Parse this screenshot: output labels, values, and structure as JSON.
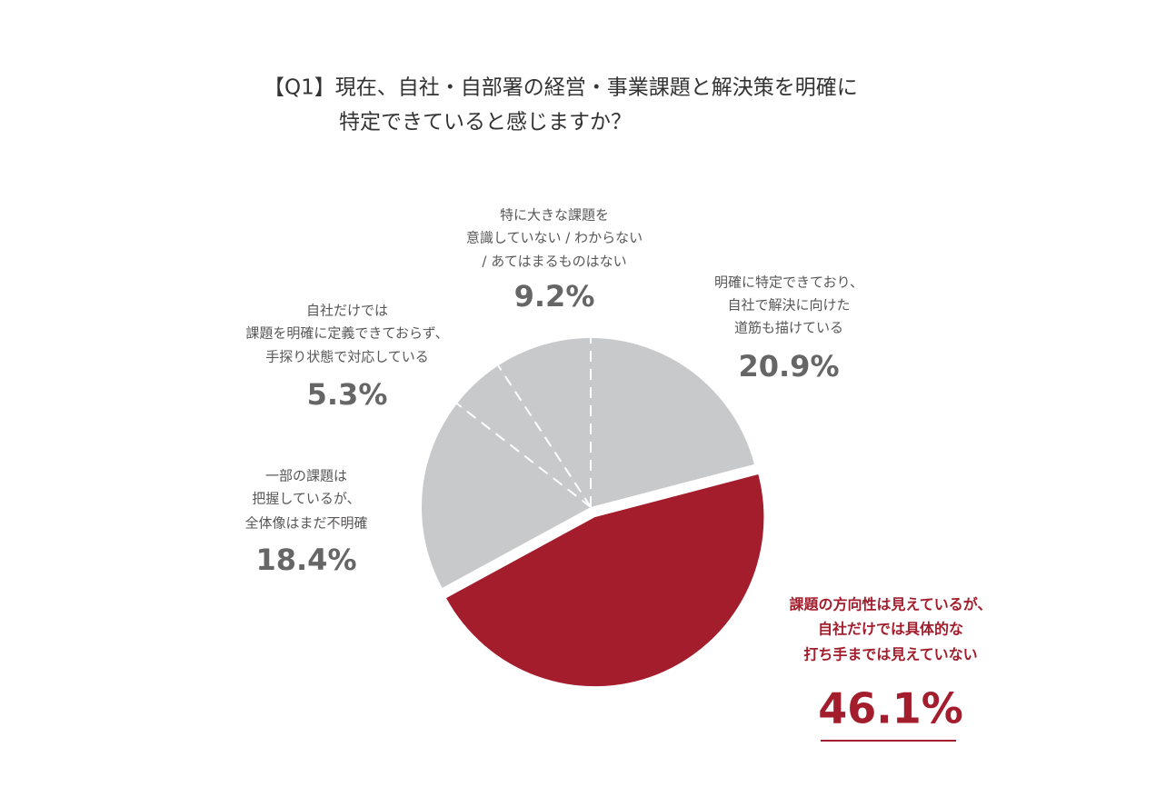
{
  "chart_data": {
    "type": "pie",
    "title": [
      "【Q1】現在、自社・自部署の経営・事業課題と解決策を明確に",
      "特定できていると感じますか？"
    ],
    "categories": [
      [
        "明確に特定できており、",
        "自社で解決に向けた",
        "道筋も描けている"
      ],
      [
        "課題の方向性は見えているが、",
        "自社だけでは具体的な",
        "打ち手までは見えていない"
      ],
      [
        "一部の課題は",
        "把握しているが、",
        "全体像はまだ不明確"
      ],
      [
        "自社だけでは",
        "課題を明確に定義できておらず、",
        "手探り状態で対応している"
      ],
      [
        "特に大きな課題を",
        "意識していない / わからない",
        "/ あてはまるものはない"
      ]
    ],
    "values": [
      20.9,
      46.1,
      18.4,
      5.3,
      9.2
    ],
    "value_labels": [
      "20.9%",
      "46.1%",
      "18.4%",
      "5.3%",
      "9.2%"
    ],
    "colors": [
      "#c8c9ca",
      "#a31d2c",
      "#c8c9ca",
      "#c8c9ca",
      "#c8c9ca"
    ]
  }
}
